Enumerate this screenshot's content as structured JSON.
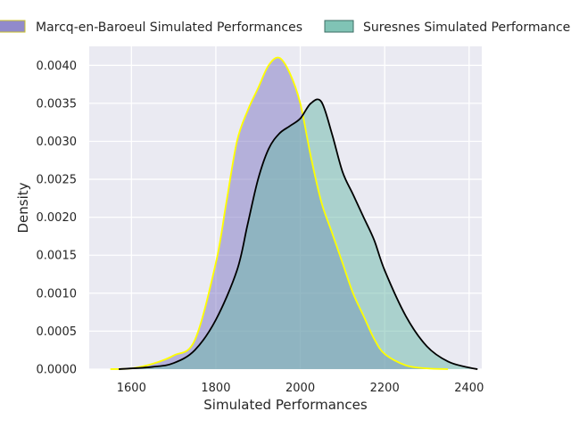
{
  "chart_data": {
    "type": "area",
    "kind": "kde",
    "title": "",
    "xlabel": "Simulated Performances",
    "ylabel": "Density",
    "xlim": [
      1500,
      2430
    ],
    "ylim": [
      0,
      0.00425
    ],
    "x_ticks": [
      1600,
      1800,
      2000,
      2200,
      2400
    ],
    "x_tick_labels": [
      "1600",
      "1800",
      "2000",
      "2200",
      "2400"
    ],
    "y_ticks": [
      0,
      0.0005,
      0.001,
      0.0015,
      0.002,
      0.0025,
      0.003,
      0.0035,
      0.004
    ],
    "y_tick_labels": [
      "0.0000",
      "0.0005",
      "0.0010",
      "0.0015",
      "0.0020",
      "0.0025",
      "0.0030",
      "0.0035",
      "0.0040"
    ],
    "grid": true,
    "legend_position": "top, outside plot area",
    "series": [
      {
        "name": "Marcq-en-Baroeul Simulated Performances",
        "fill_color": "#7E76C2",
        "fill_opacity": 0.5,
        "line_color": "#FFFF00",
        "x": [
          1550,
          1600,
          1650,
          1700,
          1750,
          1800,
          1825,
          1850,
          1875,
          1900,
          1925,
          1950,
          1975,
          2000,
          2025,
          2050,
          2075,
          2100,
          2125,
          2150,
          2175,
          2200,
          2250,
          2300,
          2350
        ],
        "y": [
          0.0,
          1e-05,
          7e-05,
          0.00018,
          0.00038,
          0.0014,
          0.0022,
          0.003,
          0.0034,
          0.0037,
          0.004,
          0.0041,
          0.0039,
          0.0035,
          0.0028,
          0.0022,
          0.0018,
          0.0014,
          0.001,
          0.0007,
          0.0004,
          0.0002,
          5e-05,
          1e-05,
          0.0
        ]
      },
      {
        "name": "Suresnes Simulated Performances",
        "fill_color": "#6AB8A8",
        "fill_opacity": 0.5,
        "line_color": "#000000",
        "x": [
          1570,
          1650,
          1700,
          1750,
          1800,
          1850,
          1875,
          1900,
          1925,
          1950,
          1975,
          2000,
          2025,
          2050,
          2075,
          2100,
          2125,
          2150,
          2175,
          2200,
          2250,
          2300,
          2350,
          2400,
          2420
        ],
        "y": [
          0.0,
          3e-05,
          8e-05,
          0.00025,
          0.00065,
          0.0013,
          0.0019,
          0.0025,
          0.0029,
          0.0031,
          0.0032,
          0.0033,
          0.0035,
          0.00352,
          0.0031,
          0.0026,
          0.0023,
          0.002,
          0.0017,
          0.0013,
          0.0007,
          0.0003,
          0.0001,
          2e-05,
          0.0
        ]
      }
    ]
  }
}
